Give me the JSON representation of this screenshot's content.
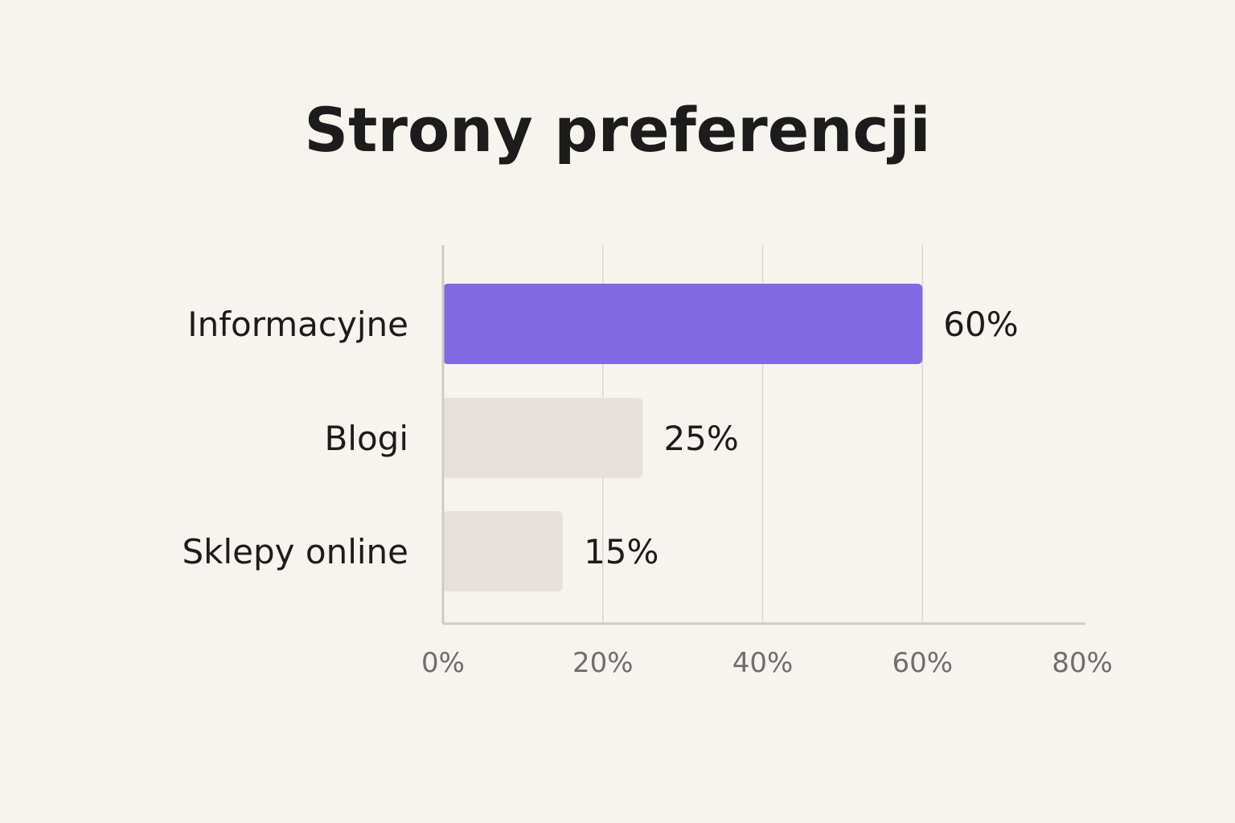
{
  "chart_data": {
    "type": "bar",
    "orientation": "horizontal",
    "title": "Strony preferencji",
    "categories": [
      "Informacyjne",
      "Blogi",
      "Sklepy online"
    ],
    "values": [
      60,
      25,
      15
    ],
    "value_labels": [
      "60%",
      "25%",
      "15%"
    ],
    "xlim": [
      0,
      80
    ],
    "xticks": [
      0,
      20,
      40,
      60,
      80
    ],
    "xtick_labels": [
      "0%",
      "20%",
      "40%",
      "60%",
      "80%"
    ],
    "xlabel": "",
    "ylabel": "",
    "grid": "vertical",
    "legend": "none",
    "colors": {
      "highlight": "#7f6ae2",
      "default": "#e6e1dc",
      "background": "#f7f3ee"
    }
  }
}
